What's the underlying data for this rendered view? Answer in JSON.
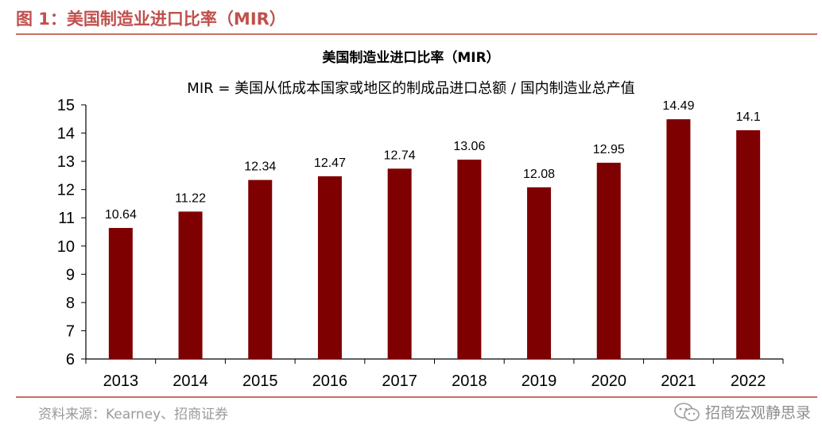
{
  "figure": {
    "header": "图 1：美国制造业进口比率（MIR）",
    "source": "资料来源：Kearney、招商证券",
    "watermark": "招商宏观静思录",
    "colors": {
      "header": "#c0504d",
      "rule": "#c9705f",
      "bar": "#7f0000"
    }
  },
  "chart_data": {
    "type": "bar",
    "title": "美国制造业进口比率（MIR）",
    "subtitle": "MIR = 美国从低成本国家或地区的制成品进口总额 / 国内制造业总产值",
    "categories": [
      "2013",
      "2014",
      "2015",
      "2016",
      "2017",
      "2018",
      "2019",
      "2020",
      "2021",
      "2022"
    ],
    "values": [
      10.64,
      11.22,
      12.34,
      12.47,
      12.74,
      13.06,
      12.08,
      12.95,
      14.49,
      14.1
    ],
    "labels": [
      "10.64",
      "11.22",
      "12.34",
      "12.47",
      "12.74",
      "13.06",
      "12.08",
      "12.95",
      "14.49",
      "14.1"
    ],
    "ylim": [
      6,
      15
    ],
    "yticks": [
      6,
      7,
      8,
      9,
      10,
      11,
      12,
      13,
      14,
      15
    ],
    "grid": false,
    "legend": "none"
  }
}
